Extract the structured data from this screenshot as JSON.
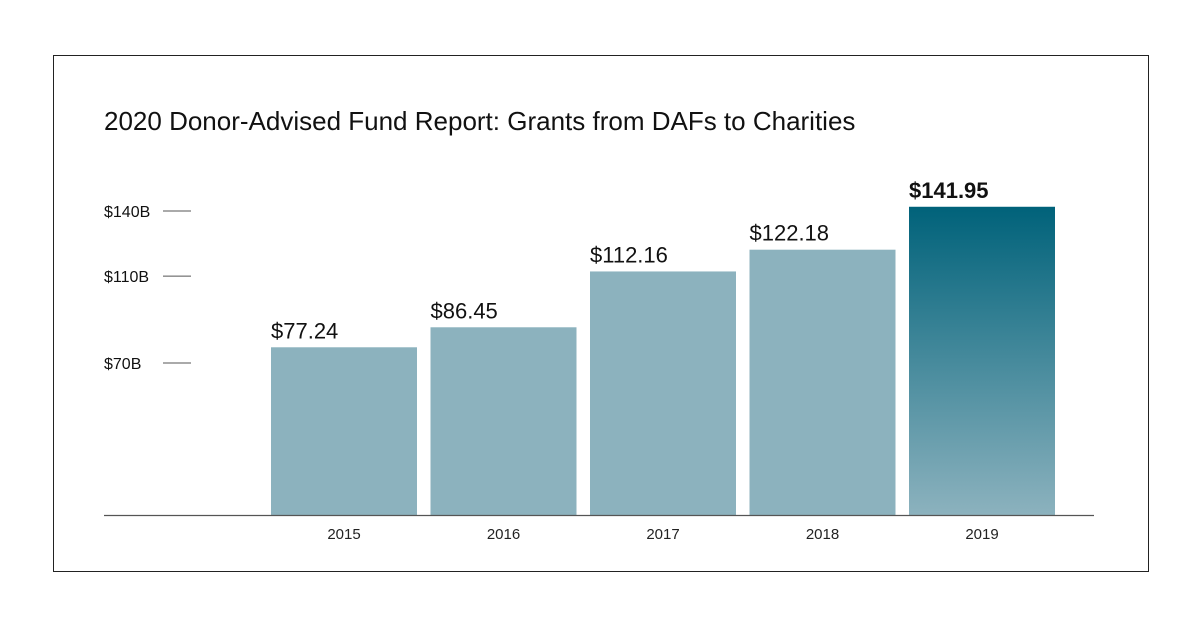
{
  "chart_data": {
    "type": "bar",
    "title": "2020 Donor-Advised Fund Report: Grants from DAFs to Charities",
    "xlabel": "",
    "ylabel": "",
    "categories": [
      "2015",
      "2016",
      "2017",
      "2018",
      "2019"
    ],
    "values": [
      77.24,
      86.45,
      112.16,
      122.18,
      141.95
    ],
    "data_labels": [
      "$77.24",
      "$86.45",
      "$112.16",
      "$122.18",
      "$141.95"
    ],
    "highlight_index": 4,
    "y_ticks": [
      {
        "value": 70,
        "label": "$70B"
      },
      {
        "value": 110,
        "label": "$110B"
      },
      {
        "value": 140,
        "label": "$140B"
      }
    ],
    "ylim": [
      0,
      140
    ],
    "grid": false,
    "legend": "none",
    "colors": {
      "bar": "#8cb2be",
      "highlight_top": "#00627a",
      "highlight_bottom": "#8cb2be",
      "axis": "#555555"
    }
  }
}
